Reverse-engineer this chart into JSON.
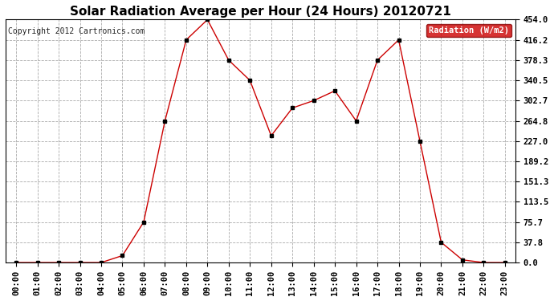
{
  "title": "Solar Radiation Average per Hour (24 Hours) 20120721",
  "copyright": "Copyright 2012 Cartronics.com",
  "legend_label": "Radiation (W/m2)",
  "hours": [
    0,
    1,
    2,
    3,
    4,
    5,
    6,
    7,
    8,
    9,
    10,
    11,
    12,
    13,
    14,
    15,
    16,
    17,
    18,
    19,
    20,
    21,
    22,
    23
  ],
  "hour_labels": [
    "00:00",
    "01:00",
    "02:00",
    "03:00",
    "04:00",
    "05:00",
    "06:00",
    "07:00",
    "08:00",
    "09:00",
    "10:00",
    "11:00",
    "12:00",
    "13:00",
    "14:00",
    "15:00",
    "16:00",
    "17:00",
    "18:00",
    "19:00",
    "20:00",
    "21:00",
    "22:00",
    "23:00"
  ],
  "values": [
    0.0,
    0.0,
    0.0,
    0.0,
    0.0,
    13.0,
    75.7,
    264.8,
    416.2,
    454.0,
    378.3,
    340.5,
    237.0,
    289.0,
    302.7,
    321.0,
    264.8,
    378.3,
    416.2,
    227.0,
    37.8,
    5.0,
    0.0,
    0.0
  ],
  "yticks": [
    0.0,
    37.8,
    75.7,
    113.5,
    151.3,
    189.2,
    227.0,
    264.8,
    302.7,
    340.5,
    378.3,
    416.2,
    454.0
  ],
  "ymax": 454.0,
  "line_color": "#cc0000",
  "marker_color": "#000000",
  "background_color": "#ffffff",
  "grid_color": "#aaaaaa",
  "title_fontsize": 11,
  "copyright_fontsize": 7,
  "tick_fontsize": 7.5,
  "legend_bg": "#cc0000",
  "legend_text_color": "#ffffff",
  "legend_fontsize": 7.5
}
